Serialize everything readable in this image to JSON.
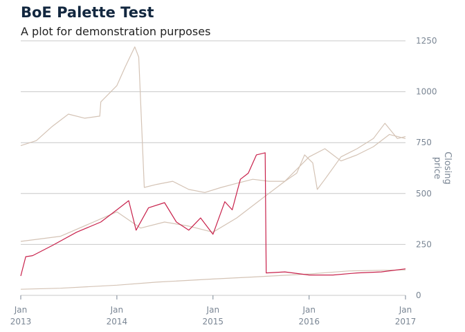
{
  "header": {
    "title": "BoE Palette Test",
    "subtitle": "A plot for demonstration purposes"
  },
  "colors": {
    "accent_series": "#c8204a",
    "muted_series": "#d4c3b5",
    "grid": "#c8c8c8",
    "axis_text": "#7a8694",
    "title": "#12273f"
  },
  "chart_data": {
    "type": "line",
    "title": "BoE Palette Test",
    "subtitle": "A plot for demonstration purposes",
    "xlabel": "",
    "ylabel": "Closing price",
    "ylabel_lines": [
      "Closing",
      "price"
    ],
    "y_axis_side": "right",
    "grid": true,
    "legend": "none",
    "xlim": [
      "2013-01-01",
      "2017-01-01"
    ],
    "ylim": [
      0,
      1250
    ],
    "yticks": [
      0,
      250,
      500,
      750,
      1000,
      1250
    ],
    "yticks_text": [
      "0",
      "250",
      "500",
      "750",
      "1000",
      "1250"
    ],
    "xticks": [
      {
        "date": "2013-01-01",
        "label1": "Jan",
        "label2": "2013"
      },
      {
        "date": "2014-01-01",
        "label1": "Jan",
        "label2": "2014"
      },
      {
        "date": "2015-01-01",
        "label1": "Jan",
        "label2": "2015"
      },
      {
        "date": "2016-01-01",
        "label1": "Jan",
        "label2": "2016"
      },
      {
        "date": "2017-01-01",
        "label1": "Jan",
        "label2": "2017"
      }
    ],
    "series": [
      {
        "color": "#d4c3b5",
        "x": [
          "2013-01-01",
          "2013-03-01",
          "2013-05-01",
          "2013-07-01",
          "2013-09-01",
          "2013-10-28",
          "2013-11-01",
          "2014-01-01",
          "2014-02-01",
          "2014-03-10",
          "2014-03-25",
          "2014-04-15",
          "2014-06-01",
          "2014-08-01",
          "2014-10-01",
          "2014-12-01",
          "2015-02-01",
          "2015-04-01",
          "2015-06-01",
          "2015-08-01",
          "2015-10-01",
          "2015-11-15",
          "2015-12-15",
          "2016-01-15",
          "2016-02-01",
          "2016-03-01",
          "2016-05-01",
          "2016-07-01",
          "2016-09-01",
          "2016-10-15",
          "2016-12-01",
          "2017-01-01"
        ],
        "values": [
          735,
          760,
          830,
          890,
          870,
          880,
          950,
          1030,
          1120,
          1220,
          1170,
          530,
          545,
          560,
          520,
          505,
          530,
          550,
          570,
          560,
          560,
          600,
          690,
          650,
          520,
          570,
          680,
          720,
          770,
          845,
          770,
          780
        ]
      },
      {
        "color": "#d4c3b5",
        "x": [
          "2013-01-01",
          "2013-06-01",
          "2014-01-01",
          "2014-04-01",
          "2014-07-01",
          "2014-10-01",
          "2015-01-01",
          "2015-04-01",
          "2015-07-01",
          "2015-10-01",
          "2016-01-01",
          "2016-03-01",
          "2016-05-01",
          "2016-07-01",
          "2016-09-01",
          "2016-11-01",
          "2017-01-01"
        ],
        "values": [
          265,
          290,
          410,
          330,
          360,
          340,
          310,
          380,
          470,
          560,
          680,
          720,
          660,
          690,
          730,
          790,
          770
        ]
      },
      {
        "color": "#c8204a",
        "x": [
          "2013-01-01",
          "2013-01-20",
          "2013-02-15",
          "2013-05-01",
          "2013-08-01",
          "2013-11-01",
          "2014-01-01",
          "2014-02-15",
          "2014-03-15",
          "2014-05-01",
          "2014-07-01",
          "2014-08-15",
          "2014-10-01",
          "2014-11-15",
          "2015-01-01",
          "2015-02-15",
          "2015-03-15",
          "2015-04-15",
          "2015-05-15",
          "2015-06-15",
          "2015-07-18",
          "2015-07-22",
          "2015-10-01",
          "2016-01-01",
          "2016-04-01",
          "2016-07-01",
          "2016-10-01",
          "2017-01-01"
        ],
        "values": [
          95,
          190,
          195,
          245,
          310,
          360,
          420,
          465,
          320,
          430,
          455,
          360,
          320,
          380,
          300,
          460,
          420,
          570,
          600,
          690,
          700,
          110,
          115,
          100,
          100,
          110,
          115,
          130
        ]
      },
      {
        "color": "#d4c3b5",
        "x": [
          "2013-01-01",
          "2013-06-01",
          "2014-01-01",
          "2014-06-01",
          "2015-01-01",
          "2015-06-01",
          "2016-01-01",
          "2016-06-01",
          "2017-01-01"
        ],
        "values": [
          30,
          35,
          50,
          65,
          80,
          90,
          105,
          120,
          125
        ]
      }
    ]
  }
}
